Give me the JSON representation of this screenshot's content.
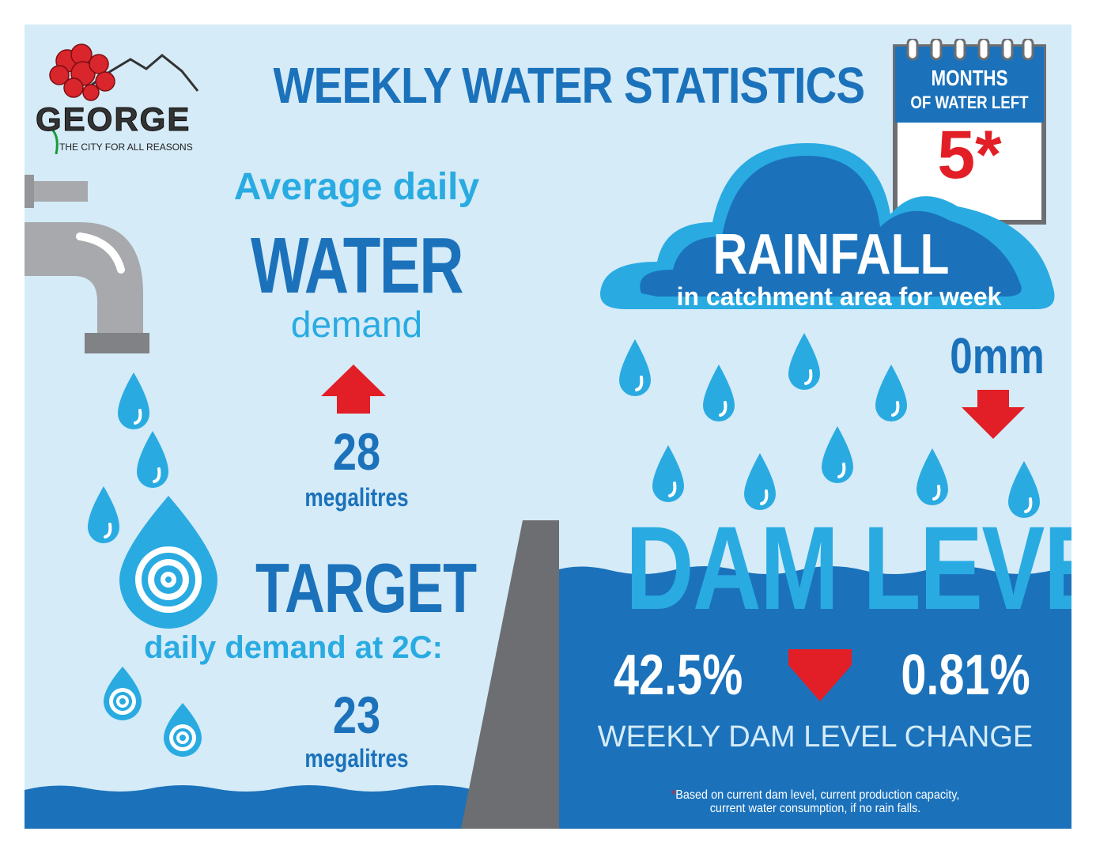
{
  "header": {
    "title": "WEEKLY WATER STATISTICS",
    "logo_name": "GEORGE",
    "logo_tagline": "THE CITY FOR ALL REASONS"
  },
  "demand": {
    "heading_1": "Average daily",
    "heading_2": "WATER",
    "heading_3": "demand",
    "value": "28",
    "unit": "megalitres",
    "trend": "up"
  },
  "target": {
    "heading": "TARGET",
    "subheading": "daily demand at 2C:",
    "value": "23",
    "unit": "megalitres"
  },
  "rainfall": {
    "heading": "RAINFALL",
    "subheading": "in catchment area for week",
    "value": "0mm",
    "trend": "down"
  },
  "months_left": {
    "label_1": "MONTHS",
    "label_2": "OF WATER LEFT",
    "value": "5*"
  },
  "dam": {
    "heading": "DAM LEVEL",
    "level": "42.5%",
    "change": "0.81%",
    "trend": "down",
    "change_label": "WEEKLY DAM LEVEL CHANGE"
  },
  "footnote": {
    "star": "*",
    "line_1": "Based on current dam level, current production capacity,",
    "line_2": "current water consumption, if no rain falls."
  },
  "colors": {
    "background": "#d5ebf8",
    "dark_blue": "#1b72bb",
    "light_blue": "#29abe2",
    "red": "#e21e26",
    "grey": "#6d6e71"
  },
  "icons": [
    "flower-logo-icon",
    "tap-icon",
    "water-drop-icon",
    "target-drop-icon",
    "cloud-icon",
    "calendar-icon",
    "up-arrow-icon",
    "down-arrow-icon",
    "dam-wall-icon"
  ]
}
